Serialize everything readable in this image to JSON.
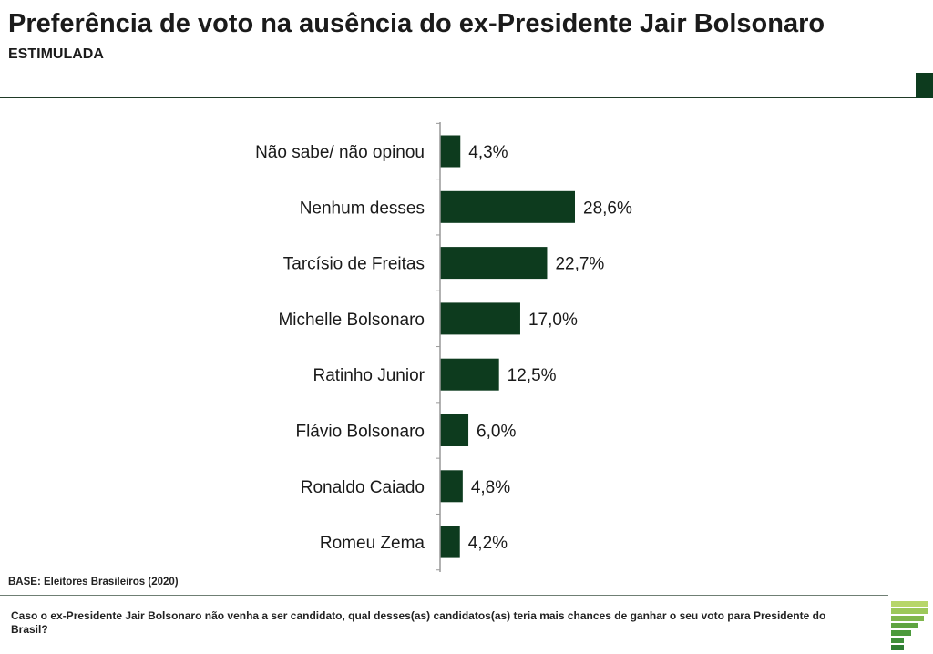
{
  "header": {
    "title": "Preferência de voto na ausência do ex-Presidente Jair Bolsonaro",
    "subtitle": "ESTIMULADA"
  },
  "footer": {
    "base": "BASE: Eleitores Brasileiros (2020)",
    "question": "Caso o ex-Presidente Jair Bolsonaro não venha a ser candidato, qual desses(as) candidatos(as) teria mais chances de ganhar o seu voto para Presidente do Brasil?"
  },
  "colors": {
    "bar": "#0d3b1e",
    "axis": "#999999",
    "logo_light": "#b7d66a",
    "logo_dark": "#3f8f3a"
  },
  "chart_data": {
    "type": "bar",
    "orientation": "horizontal",
    "categories": [
      "Não sabe/ não opinou",
      "Nenhum desses",
      "Tarcísio de Freitas",
      "Michelle Bolsonaro",
      "Ratinho Junior",
      "Flávio Bolsonaro",
      "Ronaldo Caiado",
      "Romeu Zema"
    ],
    "values": [
      4.3,
      28.6,
      22.7,
      17.0,
      12.5,
      6.0,
      4.8,
      4.2
    ],
    "value_labels": [
      "4,3%",
      "28,6%",
      "22,7%",
      "17,0%",
      "12,5%",
      "6,0%",
      "4,8%",
      "4,2%"
    ],
    "xlim": [
      0,
      30
    ],
    "grid": false,
    "legend": "none"
  }
}
